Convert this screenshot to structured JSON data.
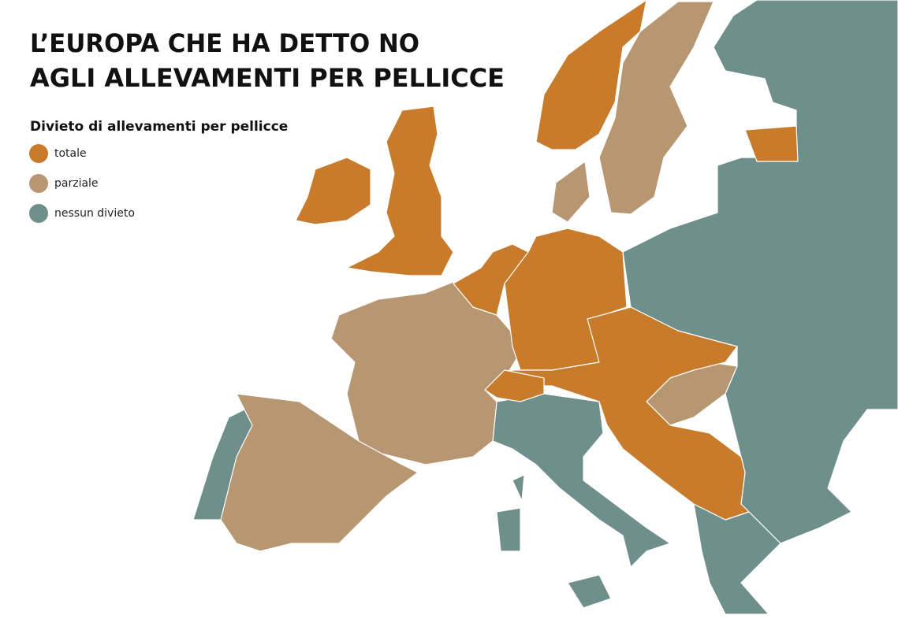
{
  "title_lines": [
    "L’EUROPA CHE HA DETTO NO",
    "AGLI ALLEVAMENTI PER PELLICCE"
  ],
  "legend": {
    "title": "Divieto di allevamenti per pellicce",
    "items": [
      {
        "label": "totale",
        "color": "#c77b2b"
      },
      {
        "label": "parziale",
        "color": "#b79672"
      },
      {
        "label": "nessun divieto",
        "color": "#6f8f8c"
      }
    ]
  }
}
